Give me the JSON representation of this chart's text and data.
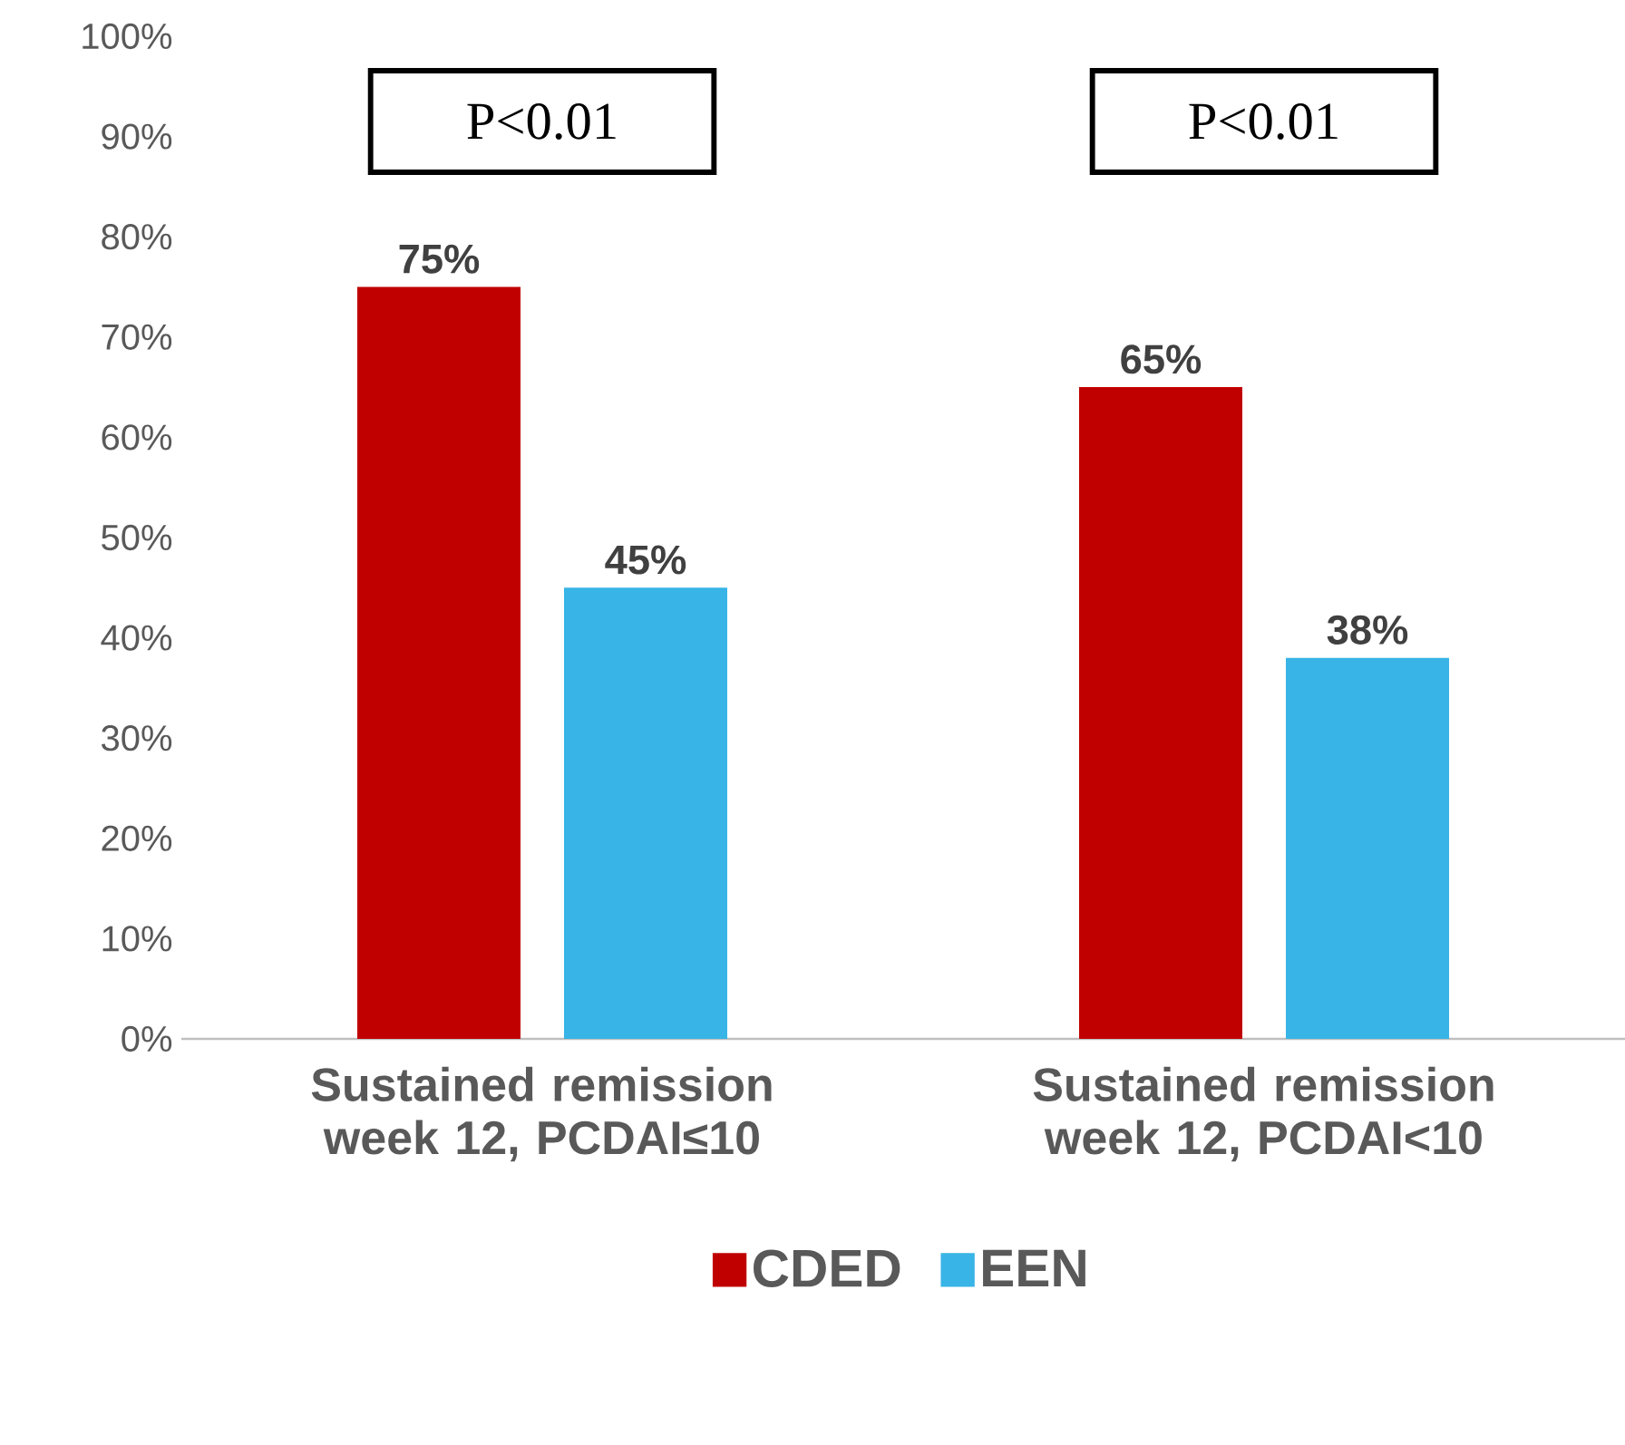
{
  "chart_data": {
    "type": "bar",
    "categories": [
      "Sustained remission week 12, PCDAI≤10",
      "Sustained remission week 12, PCDAI<10"
    ],
    "series": [
      {
        "name": "CDED",
        "color": "#c00000",
        "values": [
          75,
          65
        ],
        "value_labels": [
          "75%",
          "65%"
        ]
      },
      {
        "name": "EEN",
        "color": "#38b4e6",
        "values": [
          45,
          38
        ],
        "value_labels": [
          "45%",
          "38%"
        ]
      }
    ],
    "ylim": [
      0,
      100
    ],
    "yticks": [
      {
        "value": 0,
        "label": "0%"
      },
      {
        "value": 10,
        "label": "10%"
      },
      {
        "value": 20,
        "label": "20%"
      },
      {
        "value": 30,
        "label": "30%"
      },
      {
        "value": 40,
        "label": "40%"
      },
      {
        "value": 50,
        "label": "50%"
      },
      {
        "value": 60,
        "label": "60%"
      },
      {
        "value": 70,
        "label": "70%"
      },
      {
        "value": 80,
        "label": "80%"
      },
      {
        "value": 90,
        "label": "90%"
      },
      {
        "value": 100,
        "label": "100%"
      }
    ],
    "annotations": [
      "P<0.01",
      "P<0.01"
    ],
    "legend": "bottom",
    "grid": false
  }
}
